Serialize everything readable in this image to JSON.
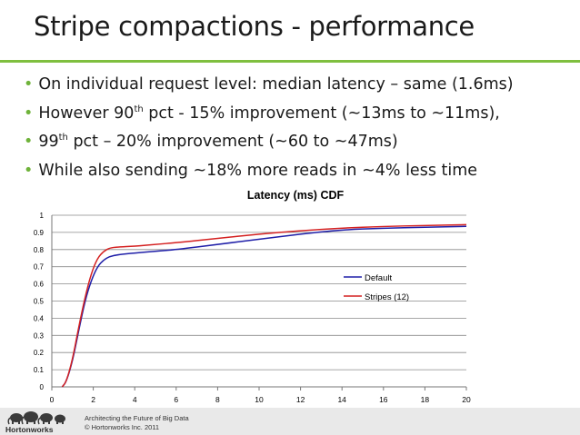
{
  "slide": {
    "title": "Stripe compactions - performance",
    "bullets": [
      {
        "pre": "On individual request level: median latency – same (1.6ms)",
        "sup": "",
        "post": ""
      },
      {
        "pre": "However 90",
        "sup": "th",
        "post": " pct -  15% improvement (~13ms to ~11ms),"
      },
      {
        "pre": "99",
        "sup": "th",
        "post": " pct – 20% improvement (~60 to ~47ms)"
      },
      {
        "pre": "While also sending ~18% more reads in ~4% less time",
        "sup": "",
        "post": ""
      }
    ]
  },
  "footer": {
    "line1": "Architecting the Future of Big Data",
    "line2": "© Hortonworks Inc. 2011",
    "logo_text": "Hortonworks",
    "logo_icon": "elephants-icon"
  },
  "colors": {
    "accent_green": "#7fbf3f",
    "default_series": "#1f1fa8",
    "stripes_series": "#d42020"
  },
  "chart_data": {
    "type": "line",
    "title": "Latency (ms) CDF",
    "xlabel": "",
    "ylabel": "",
    "xlim": [
      0,
      20
    ],
    "ylim": [
      0,
      1
    ],
    "x_ticks": [
      "0",
      "2",
      "4",
      "6",
      "8",
      "10",
      "12",
      "14",
      "16",
      "18",
      "20"
    ],
    "y_ticks": [
      "0",
      "0.1",
      "0.2",
      "0.3",
      "0.4",
      "0.5",
      "0.6",
      "0.7",
      "0.8",
      "0.9",
      "1"
    ],
    "grid": true,
    "legend_position": "right",
    "series": [
      {
        "name": "Default",
        "color": "#1f1fa8",
        "x": [
          0.5,
          0.7,
          1.0,
          1.3,
          1.6,
          1.9,
          2.2,
          2.5,
          2.8,
          3.2,
          4,
          5,
          6,
          8,
          10,
          12,
          14,
          16,
          18,
          20
        ],
        "y": [
          0,
          0.03,
          0.15,
          0.33,
          0.5,
          0.62,
          0.7,
          0.74,
          0.76,
          0.77,
          0.78,
          0.79,
          0.8,
          0.83,
          0.86,
          0.89,
          0.915,
          0.925,
          0.93,
          0.935
        ]
      },
      {
        "name": "Stripes (12)",
        "color": "#d42020",
        "x": [
          0.5,
          0.7,
          1.0,
          1.3,
          1.6,
          1.9,
          2.2,
          2.5,
          2.8,
          3.2,
          4,
          5,
          6,
          8,
          10,
          12,
          14,
          16,
          18,
          20
        ],
        "y": [
          0,
          0.03,
          0.16,
          0.35,
          0.52,
          0.66,
          0.75,
          0.79,
          0.81,
          0.815,
          0.82,
          0.83,
          0.84,
          0.865,
          0.89,
          0.91,
          0.925,
          0.935,
          0.94,
          0.945
        ]
      }
    ]
  }
}
